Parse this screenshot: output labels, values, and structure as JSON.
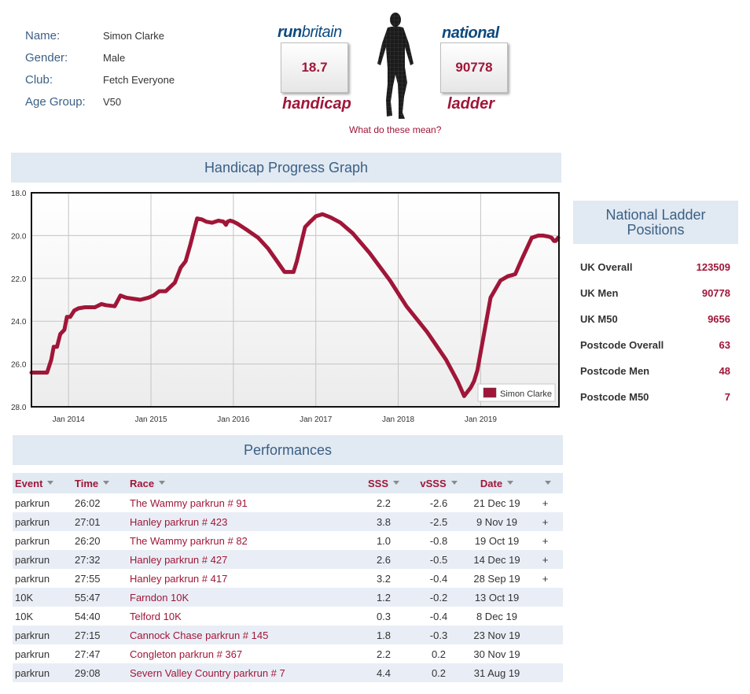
{
  "profile": {
    "name_label": "Name:",
    "name": "Simon Clarke",
    "gender_label": "Gender:",
    "gender": "Male",
    "club_label": "Club:",
    "club": "Fetch Everyone",
    "age_label": "Age Group:",
    "age_group": "V50"
  },
  "logo": {
    "run": "run",
    "britain": "britain",
    "national": "national",
    "handicap_word": "handicap",
    "ladder_word": "ladder",
    "handicap_value": "18.7",
    "ladder_value": "90778",
    "what_link": "What do these mean?"
  },
  "graph_title": "Handicap Progress Graph",
  "chart_data": {
    "type": "line",
    "title": "",
    "xlabel": "",
    "ylabel": "",
    "xlim": [
      2013.55,
      2019.95
    ],
    "ylim": [
      28.0,
      18.0
    ],
    "y_ticks": [
      "18.0",
      "20.0",
      "22.0",
      "24.0",
      "26.0",
      "28.0"
    ],
    "x_ticks": [
      {
        "label": "Jan 2014",
        "x": 2014.0
      },
      {
        "label": "Jan 2015",
        "x": 2015.0
      },
      {
        "label": "Jan 2016",
        "x": 2016.0
      },
      {
        "label": "Jan 2017",
        "x": 2017.0
      },
      {
        "label": "Jan 2018",
        "x": 2018.0
      },
      {
        "label": "Jan 2019",
        "x": 2019.0
      }
    ],
    "grid": true,
    "legend_position": "bottom-right",
    "series": [
      {
        "name": "Simon Clarke",
        "color": "#a01638",
        "x": [
          2013.55,
          2013.74,
          2013.79,
          2013.82,
          2013.86,
          2013.9,
          2013.95,
          2013.98,
          2014.02,
          2014.07,
          2014.12,
          2014.2,
          2014.32,
          2014.4,
          2014.45,
          2014.56,
          2014.63,
          2014.7,
          2014.78,
          2014.87,
          2014.97,
          2015.03,
          2015.1,
          2015.18,
          2015.29,
          2015.36,
          2015.42,
          2015.48,
          2015.56,
          2015.62,
          2015.67,
          2015.74,
          2015.82,
          2015.88,
          2015.91,
          2015.93,
          2015.96,
          2016.0,
          2016.05,
          2016.15,
          2016.3,
          2016.42,
          2016.53,
          2016.62,
          2016.68,
          2016.73,
          2016.77,
          2016.82,
          2016.87,
          2016.92,
          2017.0,
          2017.08,
          2017.18,
          2017.3,
          2017.45,
          2017.65,
          2017.9,
          2018.1,
          2018.35,
          2018.58,
          2018.72,
          2018.8,
          2018.88,
          2018.92,
          2018.96,
          2019.05,
          2019.12,
          2019.24,
          2019.33,
          2019.38,
          2019.42,
          2019.5,
          2019.56,
          2019.62,
          2019.7,
          2019.76,
          2019.83,
          2019.86,
          2019.89,
          2019.91,
          2019.94
        ],
        "y": [
          26.4,
          26.4,
          25.8,
          25.2,
          25.2,
          24.6,
          24.4,
          23.8,
          23.8,
          23.5,
          23.4,
          23.35,
          23.35,
          23.2,
          23.25,
          23.3,
          22.8,
          22.9,
          22.95,
          23.0,
          22.9,
          22.8,
          22.6,
          22.6,
          22.2,
          21.5,
          21.2,
          20.4,
          19.2,
          19.25,
          19.35,
          19.4,
          19.3,
          19.35,
          19.5,
          19.35,
          19.3,
          19.35,
          19.45,
          19.7,
          20.1,
          20.6,
          21.2,
          21.7,
          21.7,
          21.7,
          21.2,
          20.4,
          19.6,
          19.4,
          19.1,
          19.0,
          19.15,
          19.4,
          19.9,
          20.8,
          22.1,
          23.3,
          24.5,
          25.8,
          26.8,
          27.5,
          27.1,
          26.8,
          26.3,
          24.4,
          22.9,
          22.1,
          21.9,
          21.85,
          21.8,
          21.1,
          20.6,
          20.1,
          20.0,
          20.0,
          20.05,
          20.1,
          20.25,
          20.25,
          20.1
        ]
      }
    ]
  },
  "ladder": {
    "title_line1": "National Ladder",
    "title_line2": "Positions",
    "rows": [
      {
        "label": "UK Overall",
        "value": "123509"
      },
      {
        "label": "UK Men",
        "value": "90778"
      },
      {
        "label": "UK M50",
        "value": "9656"
      },
      {
        "label": "Postcode Overall",
        "value": "63"
      },
      {
        "label": "Postcode Men",
        "value": "48"
      },
      {
        "label": "Postcode M50",
        "value": "7"
      }
    ]
  },
  "performances": {
    "title": "Performances",
    "headers": {
      "event": "Event",
      "time": "Time",
      "race": "Race",
      "sss": "SSS",
      "vsss": "vSSS",
      "date": "Date"
    },
    "rows": [
      {
        "event": "parkrun",
        "time": "26:02",
        "race": "The Wammy parkrun # 91",
        "sss": "2.2",
        "vsss": "-2.6",
        "date": "21 Dec 19",
        "plus": "+"
      },
      {
        "event": "parkrun",
        "time": "27:01",
        "race": "Hanley parkrun # 423",
        "sss": "3.8",
        "vsss": "-2.5",
        "date": "9 Nov 19",
        "plus": "+"
      },
      {
        "event": "parkrun",
        "time": "26:20",
        "race": "The Wammy parkrun # 82",
        "sss": "1.0",
        "vsss": "-0.8",
        "date": "19 Oct 19",
        "plus": "+"
      },
      {
        "event": "parkrun",
        "time": "27:32",
        "race": "Hanley parkrun # 427",
        "sss": "2.6",
        "vsss": "-0.5",
        "date": "14 Dec 19",
        "plus": "+"
      },
      {
        "event": "parkrun",
        "time": "27:55",
        "race": "Hanley parkrun # 417",
        "sss": "3.2",
        "vsss": "-0.4",
        "date": "28 Sep 19",
        "plus": "+"
      },
      {
        "event": "10K",
        "time": "55:47",
        "race": "Farndon 10K",
        "sss": "1.2",
        "vsss": "-0.2",
        "date": "13 Oct 19",
        "plus": ""
      },
      {
        "event": "10K",
        "time": "54:40",
        "race": "Telford 10K",
        "sss": "0.3",
        "vsss": "-0.4",
        "date": "8 Dec 19",
        "plus": ""
      },
      {
        "event": "parkrun",
        "time": "27:15",
        "race": "Cannock Chase parkrun # 145",
        "sss": "1.8",
        "vsss": "-0.3",
        "date": "23 Nov 19",
        "plus": ""
      },
      {
        "event": "parkrun",
        "time": "27:47",
        "race": "Congleton parkrun # 367",
        "sss": "2.2",
        "vsss": "0.2",
        "date": "30 Nov 19",
        "plus": ""
      },
      {
        "event": "parkrun",
        "time": "29:08",
        "race": "Severn Valley Country parkrun # 7",
        "sss": "4.4",
        "vsss": "0.2",
        "date": "31 Aug 19",
        "plus": ""
      }
    ]
  }
}
